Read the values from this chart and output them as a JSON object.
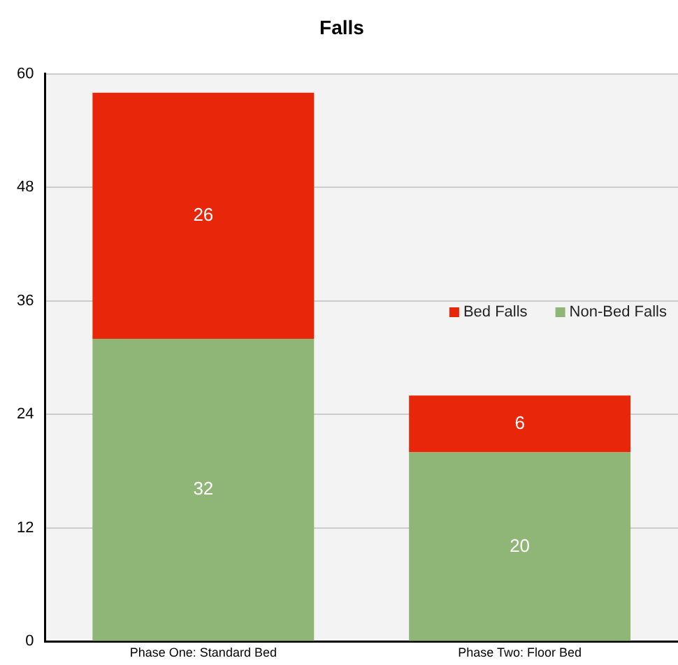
{
  "chart_data": {
    "type": "bar",
    "title": "Falls",
    "categories": [
      "Phase One: Standard Bed",
      "Phase Two: Floor Bed"
    ],
    "series": [
      {
        "name": "Non-Bed Falls",
        "color": "#8fb577",
        "values": [
          32,
          20
        ]
      },
      {
        "name": "Bed Falls",
        "color": "#e8260a",
        "values": [
          26,
          6
        ]
      }
    ],
    "stacked": true,
    "ylim": [
      0,
      60
    ],
    "yticks": [
      0,
      12,
      24,
      36,
      48,
      60
    ],
    "grid": "y",
    "legend": "right",
    "data_labels": true
  }
}
